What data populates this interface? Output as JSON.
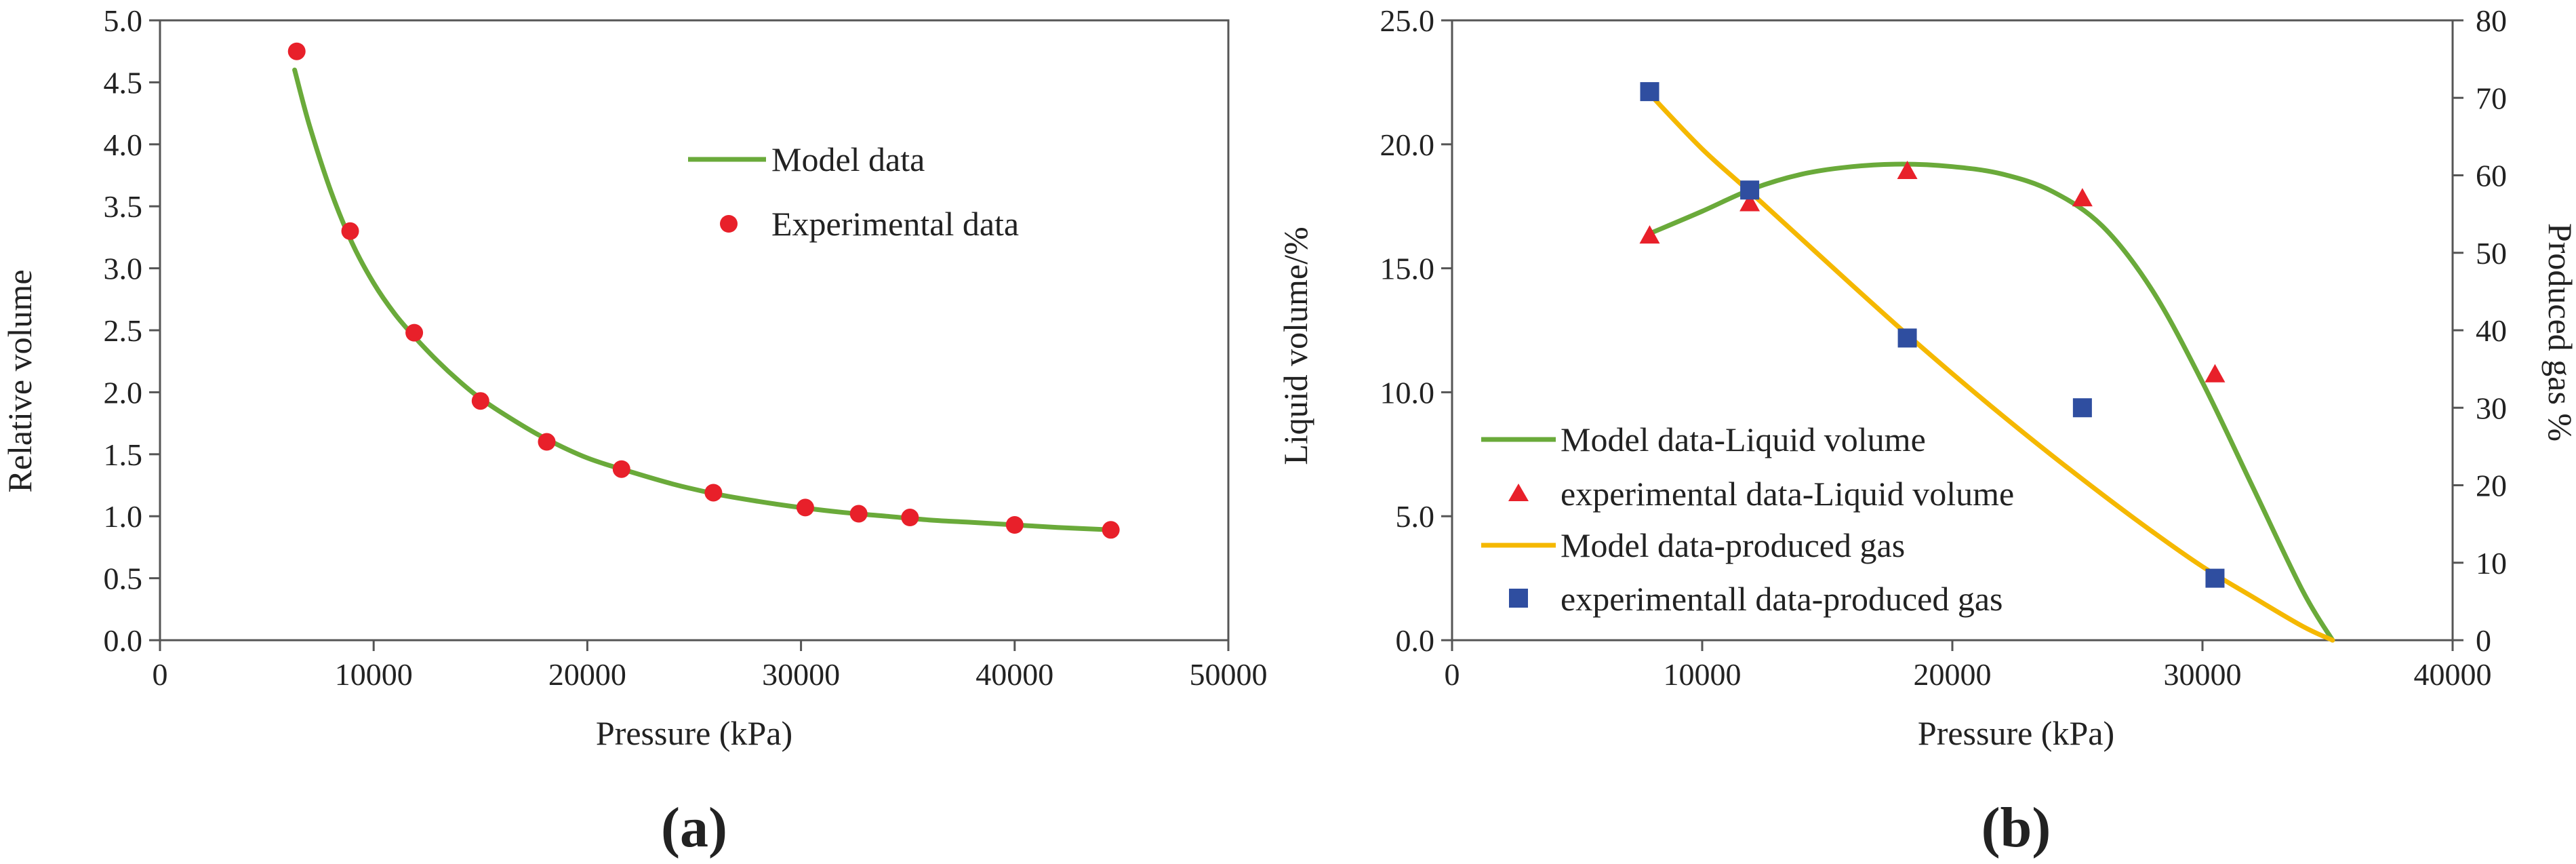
{
  "chart_data": [
    {
      "type": "line+scatter",
      "panel_label": "(a)",
      "xlabel": "Pressure (kPa)",
      "ylabel": "Relative volume",
      "xlim": [
        0,
        50000
      ],
      "ylim": [
        0,
        5.0
      ],
      "xticks": [
        0,
        10000,
        20000,
        30000,
        40000,
        50000
      ],
      "xtick_labels": [
        "0",
        "10000",
        "20000",
        "30000",
        "40000",
        "50000"
      ],
      "yticks": [
        0,
        0.5,
        1.0,
        1.5,
        2.0,
        2.5,
        3.0,
        3.5,
        4.0,
        4.5,
        5.0
      ],
      "ytick_labels": [
        "0.0",
        "0.5",
        "1.0",
        "1.5",
        "2.0",
        "2.5",
        "3.0",
        "3.5",
        "4.0",
        "4.5",
        "5.0"
      ],
      "legend_position": "top-right",
      "series": [
        {
          "name": "Model data",
          "kind": "line",
          "color": "#6aaa3a",
          "x": [
            6300,
            7000,
            8000,
            9000,
            10000,
            11000,
            12000,
            13000,
            14000,
            15000,
            16500,
            18000,
            20000,
            22000,
            24000,
            26000,
            28000,
            30000,
            32000,
            34000,
            36000,
            38000,
            40000,
            42000,
            44500
          ],
          "y": [
            4.6,
            4.15,
            3.62,
            3.2,
            2.88,
            2.63,
            2.43,
            2.25,
            2.09,
            1.95,
            1.78,
            1.63,
            1.47,
            1.36,
            1.26,
            1.18,
            1.12,
            1.07,
            1.03,
            1.0,
            0.97,
            0.95,
            0.93,
            0.91,
            0.89
          ]
        },
        {
          "name": "Experimental data",
          "kind": "scatter",
          "marker": "circle",
          "color": "#e8202a",
          "x": [
            6400,
            8900,
            11900,
            15000,
            18100,
            21600,
            25900,
            30200,
            32700,
            35100,
            40000,
            44500
          ],
          "y": [
            4.75,
            3.3,
            2.48,
            1.93,
            1.6,
            1.38,
            1.19,
            1.07,
            1.02,
            0.99,
            0.93,
            0.89
          ]
        }
      ]
    },
    {
      "type": "line+scatter",
      "panel_label": "(b)",
      "xlabel": "Pressure (kPa)",
      "ylabel": "Liquid volume/%",
      "y2label": "Produced gas %",
      "xlim": [
        0,
        40000
      ],
      "ylim": [
        0,
        25.0
      ],
      "y2lim": [
        0,
        80
      ],
      "xticks": [
        0,
        10000,
        20000,
        30000,
        40000
      ],
      "xtick_labels": [
        "0",
        "10000",
        "20000",
        "30000",
        "40000"
      ],
      "yticks": [
        0,
        5,
        10,
        15,
        20,
        25
      ],
      "ytick_labels": [
        "0.0",
        "5.0",
        "10.0",
        "15.0",
        "20.0",
        "25.0"
      ],
      "y2ticks": [
        0,
        10,
        20,
        30,
        40,
        50,
        60,
        70,
        80
      ],
      "y2tick_labels": [
        "0",
        "10",
        "20",
        "30",
        "40",
        "50",
        "60",
        "70",
        "80"
      ],
      "legend_position": "bottom-left",
      "series": [
        {
          "name": "Model data-Liquid volume",
          "kind": "line",
          "axis": "left",
          "color": "#6aaa3a",
          "x": [
            7900,
            10000,
            12000,
            14000,
            16000,
            18000,
            20000,
            22000,
            24000,
            26000,
            28000,
            30000,
            32000,
            34000,
            35200
          ],
          "y": [
            16.4,
            17.3,
            18.2,
            18.8,
            19.1,
            19.2,
            19.1,
            18.8,
            18.1,
            16.7,
            14.1,
            10.4,
            6.2,
            2.0,
            0
          ]
        },
        {
          "name": "experimental data-Liquid volume",
          "kind": "scatter",
          "axis": "left",
          "marker": "triangle",
          "color": "#e8202a",
          "x": [
            7900,
            11900,
            18200,
            25200,
            30500
          ],
          "y": [
            16.3,
            17.6,
            18.9,
            17.8,
            10.7
          ]
        },
        {
          "name": "Model data-produced gas",
          "kind": "line",
          "axis": "right",
          "color": "#f5b800",
          "x": [
            7900,
            10000,
            12000,
            14000,
            16000,
            18000,
            20000,
            22000,
            24000,
            26000,
            28000,
            30000,
            32000,
            34000,
            35200
          ],
          "y": [
            70.5,
            63.4,
            57.6,
            51.7,
            45.8,
            40.0,
            34.4,
            29.0,
            23.8,
            18.8,
            14.0,
            9.5,
            5.6,
            1.8,
            0
          ]
        },
        {
          "name": "experimentall data-produced gas",
          "kind": "scatter",
          "axis": "right",
          "marker": "square",
          "color": "#2f4ea0",
          "x": [
            7900,
            11900,
            18200,
            25200,
            30500
          ],
          "y": [
            70.8,
            58.1,
            39.0,
            30.0,
            8.0
          ]
        }
      ]
    }
  ]
}
